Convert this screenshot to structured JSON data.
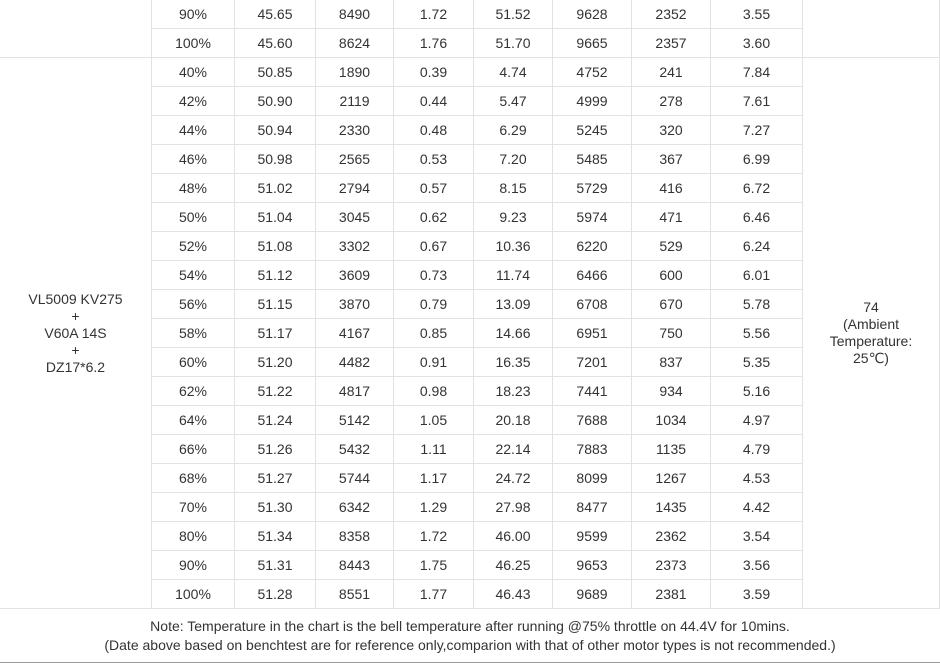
{
  "table": {
    "top_rows": [
      [
        "90%",
        "45.65",
        "8490",
        "1.72",
        "51.52",
        "9628",
        "2352",
        "3.55"
      ],
      [
        "100%",
        "45.60",
        "8624",
        "1.76",
        "51.70",
        "9665",
        "2357",
        "3.60"
      ]
    ],
    "group": {
      "label": [
        "VL5009 KV275",
        "+",
        "V60A 14S",
        "+",
        "DZ17*6.2"
      ],
      "rows": [
        [
          "40%",
          "50.85",
          "1890",
          "0.39",
          "4.74",
          "4752",
          "241",
          "7.84"
        ],
        [
          "42%",
          "50.90",
          "2119",
          "0.44",
          "5.47",
          "4999",
          "278",
          "7.61"
        ],
        [
          "44%",
          "50.94",
          "2330",
          "0.48",
          "6.29",
          "5245",
          "320",
          "7.27"
        ],
        [
          "46%",
          "50.98",
          "2565",
          "0.53",
          "7.20",
          "5485",
          "367",
          "6.99"
        ],
        [
          "48%",
          "51.02",
          "2794",
          "0.57",
          "8.15",
          "5729",
          "416",
          "6.72"
        ],
        [
          "50%",
          "51.04",
          "3045",
          "0.62",
          "9.23",
          "5974",
          "471",
          "6.46"
        ],
        [
          "52%",
          "51.08",
          "3302",
          "0.67",
          "10.36",
          "6220",
          "529",
          "6.24"
        ],
        [
          "54%",
          "51.12",
          "3609",
          "0.73",
          "11.74",
          "6466",
          "600",
          "6.01"
        ],
        [
          "56%",
          "51.15",
          "3870",
          "0.79",
          "13.09",
          "6708",
          "670",
          "5.78"
        ],
        [
          "58%",
          "51.17",
          "4167",
          "0.85",
          "14.66",
          "6951",
          "750",
          "5.56"
        ],
        [
          "60%",
          "51.20",
          "4482",
          "0.91",
          "16.35",
          "7201",
          "837",
          "5.35"
        ],
        [
          "62%",
          "51.22",
          "4817",
          "0.98",
          "18.23",
          "7441",
          "934",
          "5.16"
        ],
        [
          "64%",
          "51.24",
          "5142",
          "1.05",
          "20.18",
          "7688",
          "1034",
          "4.97"
        ],
        [
          "66%",
          "51.26",
          "5432",
          "1.11",
          "22.14",
          "7883",
          "1135",
          "4.79"
        ],
        [
          "68%",
          "51.27",
          "5744",
          "1.17",
          "24.72",
          "8099",
          "1267",
          "4.53"
        ],
        [
          "70%",
          "51.30",
          "6342",
          "1.29",
          "27.98",
          "8477",
          "1435",
          "4.42"
        ],
        [
          "80%",
          "51.34",
          "8358",
          "1.72",
          "46.00",
          "9599",
          "2362",
          "3.54"
        ],
        [
          "90%",
          "51.31",
          "8443",
          "1.75",
          "46.25",
          "9653",
          "2373",
          "3.56"
        ],
        [
          "100%",
          "51.28",
          "8551",
          "1.77",
          "46.43",
          "9689",
          "2381",
          "3.59"
        ]
      ],
      "temperature": [
        "74",
        "(Ambient",
        "Temperature:",
        "25℃)"
      ]
    }
  },
  "note": [
    "Note: Temperature in the chart is the bell temperature after running @75% throttle on 44.4V for 10mins.",
    "(Date above based on benchtest are for reference only,comparion with that of other motor types is not recommended.)"
  ]
}
